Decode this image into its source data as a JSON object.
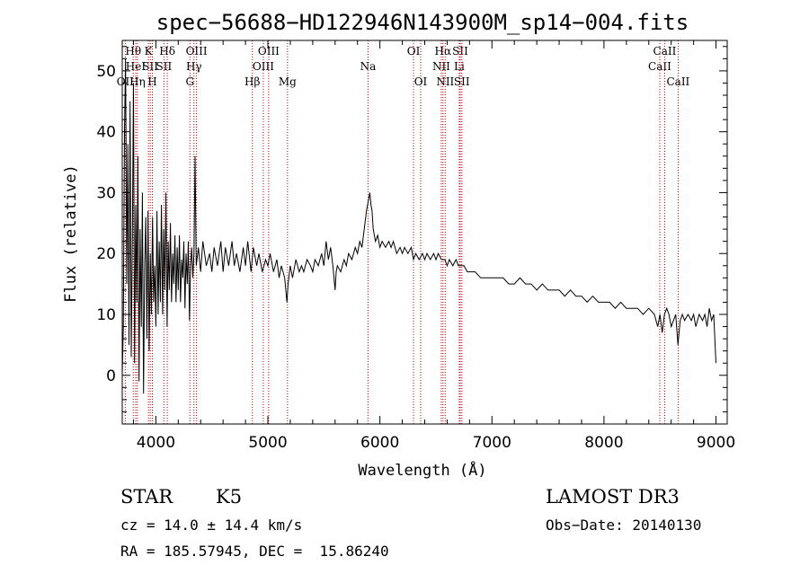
{
  "chart_data": {
    "type": "line",
    "title": "spec−56688−HD122946N143900M_sp14−004.fits",
    "xlabel": "Wavelength (Å)",
    "ylabel": "Flux (relative)",
    "xlim": [
      3700,
      9100
    ],
    "ylim": [
      -8,
      55
    ],
    "xticks": [
      4000,
      5000,
      6000,
      7000,
      8000,
      9000
    ],
    "yticks": [
      0,
      10,
      20,
      30,
      40,
      50
    ],
    "grid": false,
    "series": [
      {
        "name": "spectrum",
        "points": [
          [
            3700,
            0
          ],
          [
            3710,
            8
          ],
          [
            3720,
            40
          ],
          [
            3730,
            52
          ],
          [
            3740,
            15
          ],
          [
            3750,
            38
          ],
          [
            3760,
            5
          ],
          [
            3770,
            45
          ],
          [
            3780,
            3
          ],
          [
            3790,
            22
          ],
          [
            3800,
            48
          ],
          [
            3810,
            2
          ],
          [
            3820,
            28
          ],
          [
            3830,
            12
          ],
          [
            3840,
            36
          ],
          [
            3850,
            -1
          ],
          [
            3860,
            24
          ],
          [
            3870,
            8
          ],
          [
            3880,
            30
          ],
          [
            3890,
            -3
          ],
          [
            3900,
            18
          ],
          [
            3910,
            26
          ],
          [
            3920,
            6
          ],
          [
            3930,
            27
          ],
          [
            3940,
            4
          ],
          [
            3950,
            20
          ],
          [
            3960,
            10
          ],
          [
            3970,
            26
          ],
          [
            3980,
            12
          ],
          [
            3990,
            18
          ],
          [
            4000,
            8
          ],
          [
            4010,
            27
          ],
          [
            4020,
            10
          ],
          [
            4030,
            22
          ],
          [
            4040,
            12
          ],
          [
            4050,
            28
          ],
          [
            4060,
            10
          ],
          [
            4070,
            24
          ],
          [
            4080,
            14
          ],
          [
            4090,
            30
          ],
          [
            4100,
            8
          ],
          [
            4110,
            22
          ],
          [
            4120,
            14
          ],
          [
            4130,
            25
          ],
          [
            4140,
            12
          ],
          [
            4150,
            20
          ],
          [
            4160,
            15
          ],
          [
            4170,
            23
          ],
          [
            4180,
            12
          ],
          [
            4190,
            21
          ],
          [
            4200,
            14
          ],
          [
            4210,
            23
          ],
          [
            4220,
            12
          ],
          [
            4230,
            19
          ],
          [
            4240,
            16
          ],
          [
            4250,
            22
          ],
          [
            4260,
            11
          ],
          [
            4270,
            20
          ],
          [
            4280,
            15
          ],
          [
            4290,
            22
          ],
          [
            4300,
            9
          ],
          [
            4310,
            18
          ],
          [
            4320,
            21
          ],
          [
            4330,
            16
          ],
          [
            4340,
            20
          ],
          [
            4350,
            36
          ],
          [
            4360,
            18
          ],
          [
            4380,
            21
          ],
          [
            4400,
            17
          ],
          [
            4420,
            22
          ],
          [
            4450,
            18
          ],
          [
            4480,
            20
          ],
          [
            4500,
            17
          ],
          [
            4520,
            21
          ],
          [
            4550,
            18
          ],
          [
            4580,
            22
          ],
          [
            4600,
            17
          ],
          [
            4620,
            21
          ],
          [
            4650,
            18
          ],
          [
            4680,
            22
          ],
          [
            4700,
            18
          ],
          [
            4720,
            20
          ],
          [
            4750,
            17
          ],
          [
            4780,
            21
          ],
          [
            4800,
            18
          ],
          [
            4820,
            22
          ],
          [
            4850,
            17
          ],
          [
            4870,
            21
          ],
          [
            4900,
            18
          ],
          [
            4920,
            20
          ],
          [
            4950,
            17
          ],
          [
            4980,
            19
          ],
          [
            5000,
            18
          ],
          [
            5020,
            20
          ],
          [
            5050,
            17
          ],
          [
            5080,
            19
          ],
          [
            5100,
            16
          ],
          [
            5120,
            18
          ],
          [
            5150,
            16
          ],
          [
            5170,
            12
          ],
          [
            5180,
            15
          ],
          [
            5200,
            18
          ],
          [
            5220,
            16
          ],
          [
            5250,
            19
          ],
          [
            5280,
            17
          ],
          [
            5300,
            18
          ],
          [
            5320,
            17
          ],
          [
            5350,
            19
          ],
          [
            5380,
            18
          ],
          [
            5400,
            17
          ],
          [
            5420,
            19
          ],
          [
            5450,
            18
          ],
          [
            5480,
            20
          ],
          [
            5500,
            18
          ],
          [
            5520,
            22
          ],
          [
            5540,
            19
          ],
          [
            5560,
            21
          ],
          [
            5580,
            18
          ],
          [
            5600,
            14
          ],
          [
            5610,
            17
          ],
          [
            5620,
            18
          ],
          [
            5650,
            17
          ],
          [
            5680,
            19
          ],
          [
            5700,
            18
          ],
          [
            5720,
            20
          ],
          [
            5750,
            19
          ],
          [
            5780,
            21
          ],
          [
            5800,
            20
          ],
          [
            5820,
            22
          ],
          [
            5840,
            21
          ],
          [
            5860,
            24
          ],
          [
            5880,
            27
          ],
          [
            5900,
            29
          ],
          [
            5910,
            30
          ],
          [
            5920,
            28
          ],
          [
            5930,
            27
          ],
          [
            5940,
            24
          ],
          [
            5960,
            22
          ],
          [
            5980,
            23
          ],
          [
            6000,
            21
          ],
          [
            6020,
            22
          ],
          [
            6050,
            21
          ],
          [
            6080,
            22
          ],
          [
            6100,
            21
          ],
          [
            6120,
            22
          ],
          [
            6150,
            20
          ],
          [
            6180,
            21
          ],
          [
            6200,
            20
          ],
          [
            6220,
            21
          ],
          [
            6250,
            20
          ],
          [
            6280,
            21
          ],
          [
            6300,
            19
          ],
          [
            6320,
            20
          ],
          [
            6350,
            19
          ],
          [
            6380,
            20
          ],
          [
            6400,
            19
          ],
          [
            6420,
            20
          ],
          [
            6450,
            19
          ],
          [
            6480,
            20
          ],
          [
            6500,
            19
          ],
          [
            6520,
            20
          ],
          [
            6550,
            19
          ],
          [
            6580,
            19
          ],
          [
            6600,
            18
          ],
          [
            6620,
            19
          ],
          [
            6650,
            18
          ],
          [
            6680,
            19
          ],
          [
            6700,
            18
          ],
          [
            6720,
            18
          ],
          [
            6750,
            18
          ],
          [
            6780,
            17
          ],
          [
            6800,
            17
          ],
          [
            6850,
            17
          ],
          [
            6900,
            16
          ],
          [
            6950,
            16
          ],
          [
            7000,
            16
          ],
          [
            7050,
            16
          ],
          [
            7100,
            16
          ],
          [
            7150,
            15
          ],
          [
            7200,
            15
          ],
          [
            7250,
            16
          ],
          [
            7300,
            15
          ],
          [
            7350,
            15
          ],
          [
            7400,
            14
          ],
          [
            7450,
            15
          ],
          [
            7500,
            14
          ],
          [
            7550,
            14
          ],
          [
            7600,
            14
          ],
          [
            7650,
            13
          ],
          [
            7700,
            14
          ],
          [
            7750,
            13
          ],
          [
            7800,
            13
          ],
          [
            7850,
            12
          ],
          [
            7900,
            13
          ],
          [
            7950,
            12
          ],
          [
            8000,
            12
          ],
          [
            8050,
            12
          ],
          [
            8100,
            11
          ],
          [
            8150,
            12
          ],
          [
            8200,
            11
          ],
          [
            8250,
            11
          ],
          [
            8300,
            11
          ],
          [
            8350,
            10
          ],
          [
            8400,
            11
          ],
          [
            8450,
            10
          ],
          [
            8480,
            8
          ],
          [
            8500,
            10
          ],
          [
            8520,
            7
          ],
          [
            8540,
            10
          ],
          [
            8560,
            11
          ],
          [
            8580,
            10
          ],
          [
            8600,
            8
          ],
          [
            8620,
            9
          ],
          [
            8640,
            10
          ],
          [
            8660,
            5
          ],
          [
            8680,
            9
          ],
          [
            8700,
            10
          ],
          [
            8720,
            9
          ],
          [
            8750,
            10
          ],
          [
            8780,
            9
          ],
          [
            8800,
            10
          ],
          [
            8820,
            8
          ],
          [
            8850,
            10
          ],
          [
            8880,
            9
          ],
          [
            8900,
            10
          ],
          [
            8920,
            8
          ],
          [
            8940,
            11
          ],
          [
            8960,
            9
          ],
          [
            8980,
            10
          ],
          [
            9000,
            2
          ]
        ]
      }
    ],
    "line_markers": [
      {
        "label": "OII",
        "wavelength": 3727,
        "row": 3
      },
      {
        "label": "Hθ",
        "wavelength": 3798,
        "row": 1
      },
      {
        "label": "HeI",
        "wavelength": 3820,
        "row": 2
      },
      {
        "label": "Hη",
        "wavelength": 3835,
        "row": 3
      },
      {
        "label": "K",
        "wavelength": 3934,
        "row": 1
      },
      {
        "label": "SII",
        "wavelength": 3950,
        "row": 2
      },
      {
        "label": "H",
        "wavelength": 3969,
        "row": 3
      },
      {
        "label": "Hδ",
        "wavelength": 4102,
        "row": 1
      },
      {
        "label": "SII",
        "wavelength": 4072,
        "row": 2
      },
      {
        "label": "G",
        "wavelength": 4304,
        "row": 3
      },
      {
        "label": "Hγ",
        "wavelength": 4340,
        "row": 2
      },
      {
        "label": "OIII",
        "wavelength": 4363,
        "row": 1
      },
      {
        "label": "Hβ",
        "wavelength": 4861,
        "row": 3
      },
      {
        "label": "OIII",
        "wavelength": 4959,
        "row": 2
      },
      {
        "label": "OIII",
        "wavelength": 5007,
        "row": 1
      },
      {
        "label": "Mg",
        "wavelength": 5175,
        "row": 3
      },
      {
        "label": "Na",
        "wavelength": 5894,
        "row": 2
      },
      {
        "label": "OI",
        "wavelength": 6300,
        "row": 1
      },
      {
        "label": "OI",
        "wavelength": 6364,
        "row": 3
      },
      {
        "label": "NII",
        "wavelength": 6548,
        "row": 2
      },
      {
        "label": "Hα",
        "wavelength": 6563,
        "row": 1
      },
      {
        "label": "NII",
        "wavelength": 6583,
        "row": 3
      },
      {
        "label": "Li",
        "wavelength": 6708,
        "row": 2
      },
      {
        "label": "SII",
        "wavelength": 6717,
        "row": 1
      },
      {
        "label": "SII",
        "wavelength": 6731,
        "row": 3
      },
      {
        "label": "CaII",
        "wavelength": 8498,
        "row": 2
      },
      {
        "label": "CaII",
        "wavelength": 8542,
        "row": 1
      },
      {
        "label": "CaII",
        "wavelength": 8662,
        "row": 3
      }
    ]
  },
  "info": {
    "class_label": "STAR",
    "subclass_label": "K5",
    "survey": "LAMOST DR3",
    "cz_line": "cz = 14.0 ± 14.4 km/s",
    "obs_date": "Obs−Date: 20140130",
    "coord_line": "RA = 185.57945, DEC =  15.86240"
  },
  "colors": {
    "marker_line": "#c00000",
    "spectrum": "#000000",
    "axes": "#000000"
  }
}
